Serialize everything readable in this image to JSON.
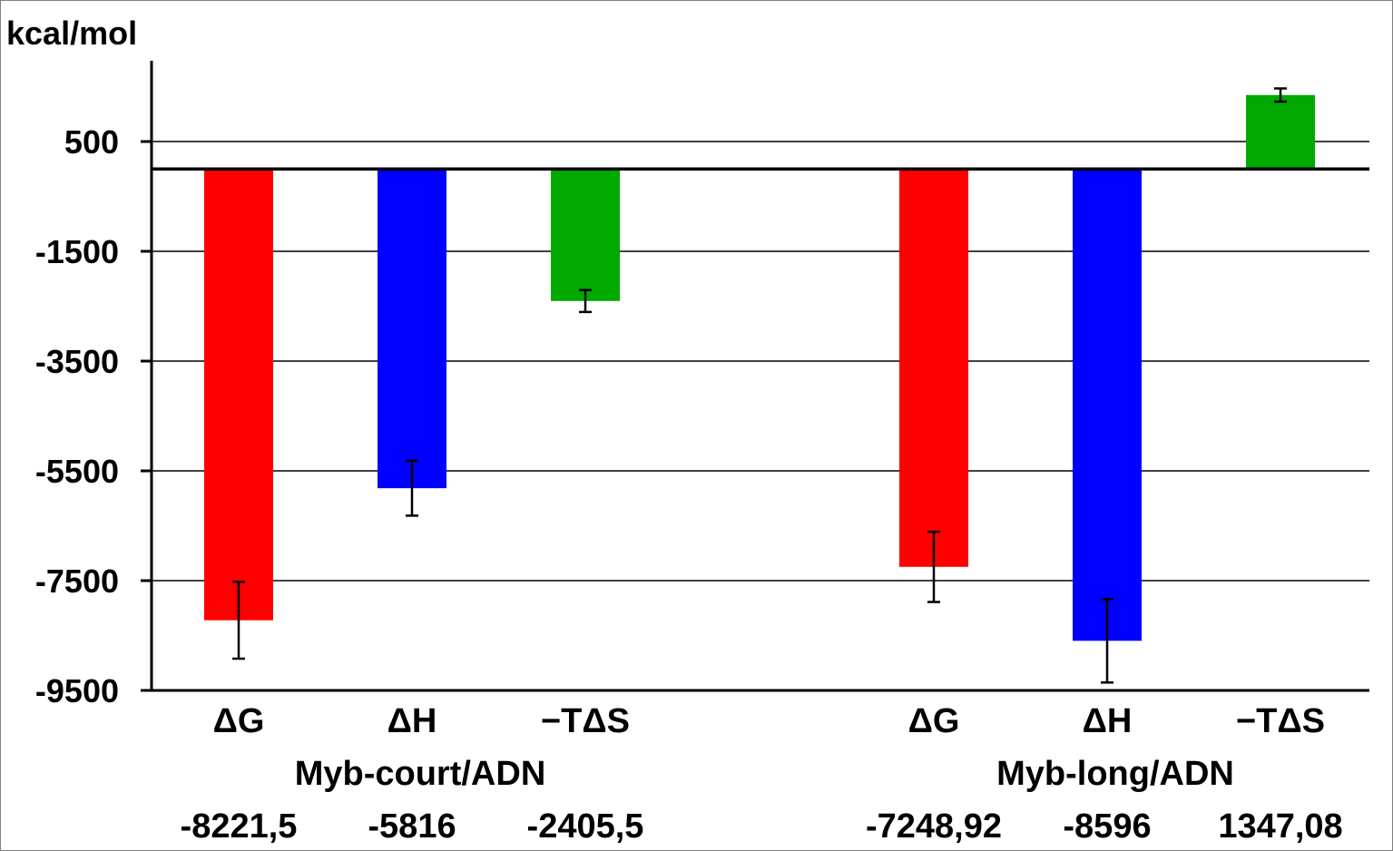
{
  "chart_data": {
    "type": "bar",
    "ylabel": "kcal/mol",
    "ylim": [
      -9500,
      1200
    ],
    "yticks": [
      500,
      -1500,
      -3500,
      -5500,
      -7500,
      -9500
    ],
    "yticklabels": [
      "500",
      "-1500",
      "-3500",
      "-5500",
      "-7500",
      "-9500"
    ],
    "grid": true,
    "legend": "none",
    "groups": [
      {
        "label": "Myb-court/ADN",
        "bars": [
          {
            "label": "ΔG",
            "value": -8221.5,
            "error": 700,
            "color": "#ff0000",
            "value_text": "-8221,5"
          },
          {
            "label": "ΔH",
            "value": -5816,
            "error": 500,
            "color": "#0000ff",
            "value_text": "-5816"
          },
          {
            "label": "−TΔS",
            "value": -2405.5,
            "error": 200,
            "color": "#00a800",
            "value_text": "-2405,5"
          }
        ]
      },
      {
        "label": "Myb-long/ADN",
        "bars": [
          {
            "label": "ΔG",
            "value": -7248.92,
            "error": 640,
            "color": "#ff0000",
            "value_text": "-7248,92"
          },
          {
            "label": "ΔH",
            "value": -8596,
            "error": 760,
            "color": "#0000ff",
            "value_text": "-8596"
          },
          {
            "label": "−TΔS",
            "value": 1347.08,
            "error": 120,
            "color": "#00a800",
            "value_text": "1347,08"
          }
        ]
      }
    ]
  }
}
